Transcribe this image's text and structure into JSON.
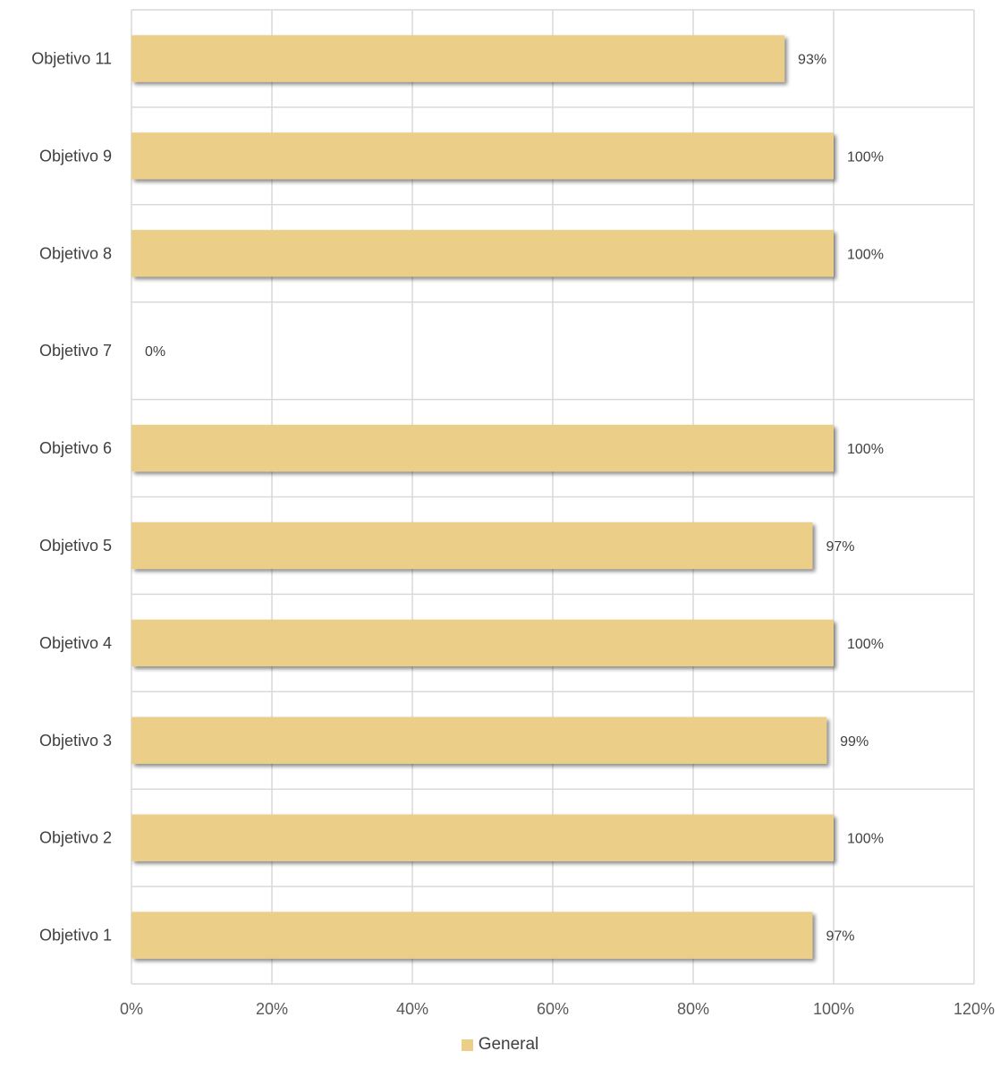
{
  "chart_data": {
    "type": "bar",
    "orientation": "horizontal",
    "categories": [
      "Objetivo 11",
      "Objetivo 9",
      "Objetivo 8",
      "Objetivo 7",
      "Objetivo 6",
      "Objetivo 5",
      "Objetivo 4",
      "Objetivo 3",
      "Objetivo 2",
      "Objetivo 1"
    ],
    "series": [
      {
        "name": "General",
        "values": [
          93,
          100,
          100,
          0,
          100,
          97,
          100,
          99,
          100,
          97
        ],
        "data_labels": [
          "93%",
          "100%",
          "100%",
          "0%",
          "100%",
          "97%",
          "100%",
          "99%",
          "100%",
          "97%"
        ],
        "color": "#ebcf88"
      }
    ],
    "xlim": [
      0,
      120
    ],
    "x_ticks": [
      0,
      20,
      40,
      60,
      80,
      100,
      120
    ],
    "x_tick_labels": [
      "0%",
      "20%",
      "40%",
      "60%",
      "80%",
      "100%",
      "120%"
    ],
    "grid": true,
    "legend_position": "bottom-center",
    "title": "",
    "xlabel": "",
    "ylabel": ""
  }
}
